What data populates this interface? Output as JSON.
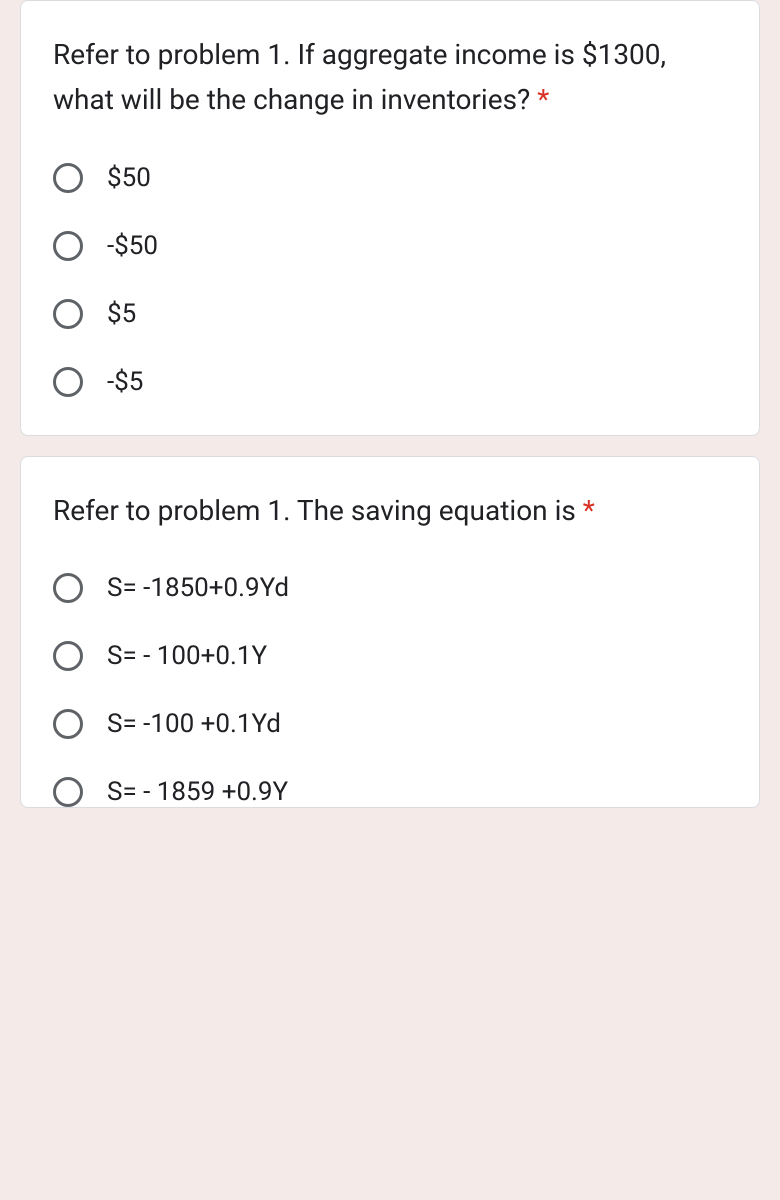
{
  "question1": {
    "text": "Refer to problem 1. If aggregate income is $1300, what will be the change in inventories? ",
    "required": "*",
    "options": [
      {
        "label": "$50"
      },
      {
        "label": "-$50"
      },
      {
        "label": "$5"
      },
      {
        "label": "-$5"
      }
    ]
  },
  "question2": {
    "text": "Refer to problem 1. The saving equation is ",
    "required": "*",
    "options": [
      {
        "label": "S= -1850+0.9Yd"
      },
      {
        "label": "S= - 100+0.1Y"
      },
      {
        "label": "S= -100 +0.1Yd"
      },
      {
        "label": "S= - 1859 +0.9Y"
      }
    ]
  }
}
